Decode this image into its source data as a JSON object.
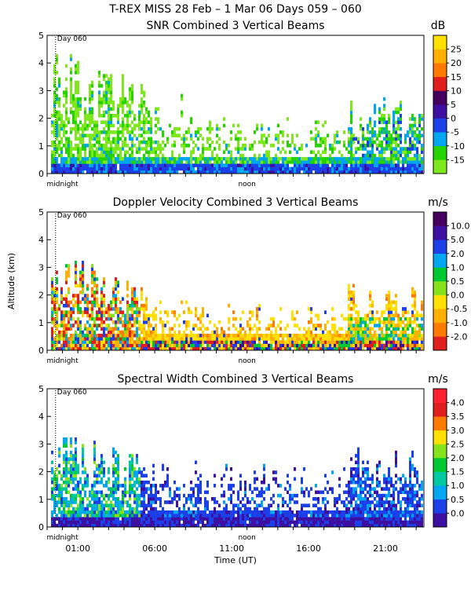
{
  "header": {
    "title": "T-REX MISS    28 Feb –   1 Mar 06 Days 059 – 060"
  },
  "colors": {
    "snr_scale": [
      "#7ee81d",
      "#24d300",
      "#00a6f0",
      "#1b3fe8",
      "#3d0fa0",
      "#45005e",
      "#e01e1e",
      "#ff7a00",
      "#ffb000",
      "#ffe000"
    ],
    "velocity_scale": [
      "#e01e1e",
      "#ff7a00",
      "#ffb000",
      "#ffe000",
      "#86e21a",
      "#00c832",
      "#00a6f0",
      "#1b3fe8",
      "#3d0fa0",
      "#45005e"
    ],
    "width_scale": [
      "#3d0fa0",
      "#1b3fe8",
      "#00a6f0",
      "#00c8a0",
      "#00c832",
      "#86e21a",
      "#ffe000",
      "#ff7a00",
      "#e01e1e",
      "#ff2030"
    ]
  },
  "chart_data": [
    {
      "type": "heatmap",
      "title": "SNR Combined 3 Vertical Beams",
      "unit": "dB",
      "xlabel": "",
      "ylabel": "",
      "xlim": [
        -1.0,
        23.5
      ],
      "ylim": [
        0,
        5
      ],
      "yticks": [
        "0",
        "1",
        "2",
        "3",
        "4",
        "5"
      ],
      "x_tick_labels": [
        "midnight",
        "noon"
      ],
      "x_tick_positions": [
        0,
        12
      ],
      "day_marker": "Day 060",
      "colorbar_labels": [
        "-15",
        "-10",
        "-5",
        "0",
        "5",
        "10",
        "15",
        "20",
        "25"
      ],
      "regimes": [
        {
          "x": [
            -0.8,
            8.0
          ],
          "y_top": [
            4.6,
            2.9
          ],
          "dominant": "-15 to -10 dB"
        },
        {
          "x": [
            8.0,
            18.5
          ],
          "y_top": [
            2.0,
            2.2
          ],
          "dominant": "-15 to -10 dB"
        },
        {
          "x": [
            18.5,
            23.5
          ],
          "y_top": [
            2.8,
            2.8
          ],
          "dominant": "-10 to 0 dB"
        }
      ]
    },
    {
      "type": "heatmap",
      "title": "Doppler Velocity Combined 3 Vertical Beams",
      "unit": "m/s",
      "xlabel": "",
      "ylabel": "Altitude (km)",
      "xlim": [
        -1.0,
        23.5
      ],
      "ylim": [
        0,
        5
      ],
      "yticks": [
        "0",
        "1",
        "2",
        "3",
        "4",
        "5"
      ],
      "x_tick_labels": [
        "midnight",
        "noon"
      ],
      "x_tick_positions": [
        0,
        12
      ],
      "day_marker": "Day 060",
      "colorbar_labels": [
        "-2.0",
        "-1.0",
        "-0.5",
        "0.0",
        "0.5",
        "1.0",
        "2.0",
        "5.0",
        "10.0"
      ],
      "regimes": [
        {
          "x": [
            -0.8,
            6.0
          ],
          "y_top": [
            3.6,
            2.5
          ],
          "dominant": "-2.0 to 1.0 m/s mixed"
        },
        {
          "x": [
            6.0,
            18.5
          ],
          "y_top": [
            2.0,
            1.5
          ],
          "dominant": "-0.5 to 0.0 m/s"
        },
        {
          "x": [
            18.5,
            23.5
          ],
          "y_top": [
            2.4,
            2.4
          ],
          "dominant": "-0.5 to 0.0 m/s"
        }
      ]
    },
    {
      "type": "heatmap",
      "title": "Spectral Width Combined 3 Vertical Beams",
      "unit": "m/s",
      "xlabel": "Time (UT)",
      "ylabel": "",
      "xlim": [
        -1.0,
        23.5
      ],
      "ylim": [
        0,
        5
      ],
      "yticks": [
        "0",
        "1",
        "2",
        "3",
        "4",
        "5"
      ],
      "x_tick_labels": [
        "midnight",
        "noon"
      ],
      "x_tick_positions": [
        0,
        12
      ],
      "x_time_labels": [
        "01:00",
        "06:00",
        "11:00",
        "16:00",
        "21:00"
      ],
      "x_time_positions": [
        1,
        6,
        11,
        16,
        21
      ],
      "day_marker": "Day 060",
      "colorbar_labels": [
        "0.0",
        "0.5",
        "1.0",
        "1.5",
        "2.0",
        "2.5",
        "3.0",
        "3.5",
        "4.0"
      ],
      "regimes": [
        {
          "x": [
            -0.8,
            6.0
          ],
          "y_top": [
            3.5,
            2.5
          ],
          "dominant": "1.0 to 2.0 m/s"
        },
        {
          "x": [
            6.0,
            18.5
          ],
          "y_top": [
            2.5,
            2.2
          ],
          "dominant": "0.0 to 0.5 m/s"
        },
        {
          "x": [
            18.5,
            23.5
          ],
          "y_top": [
            2.9,
            2.9
          ],
          "dominant": "0.5 to 1.0 m/s"
        }
      ]
    }
  ]
}
